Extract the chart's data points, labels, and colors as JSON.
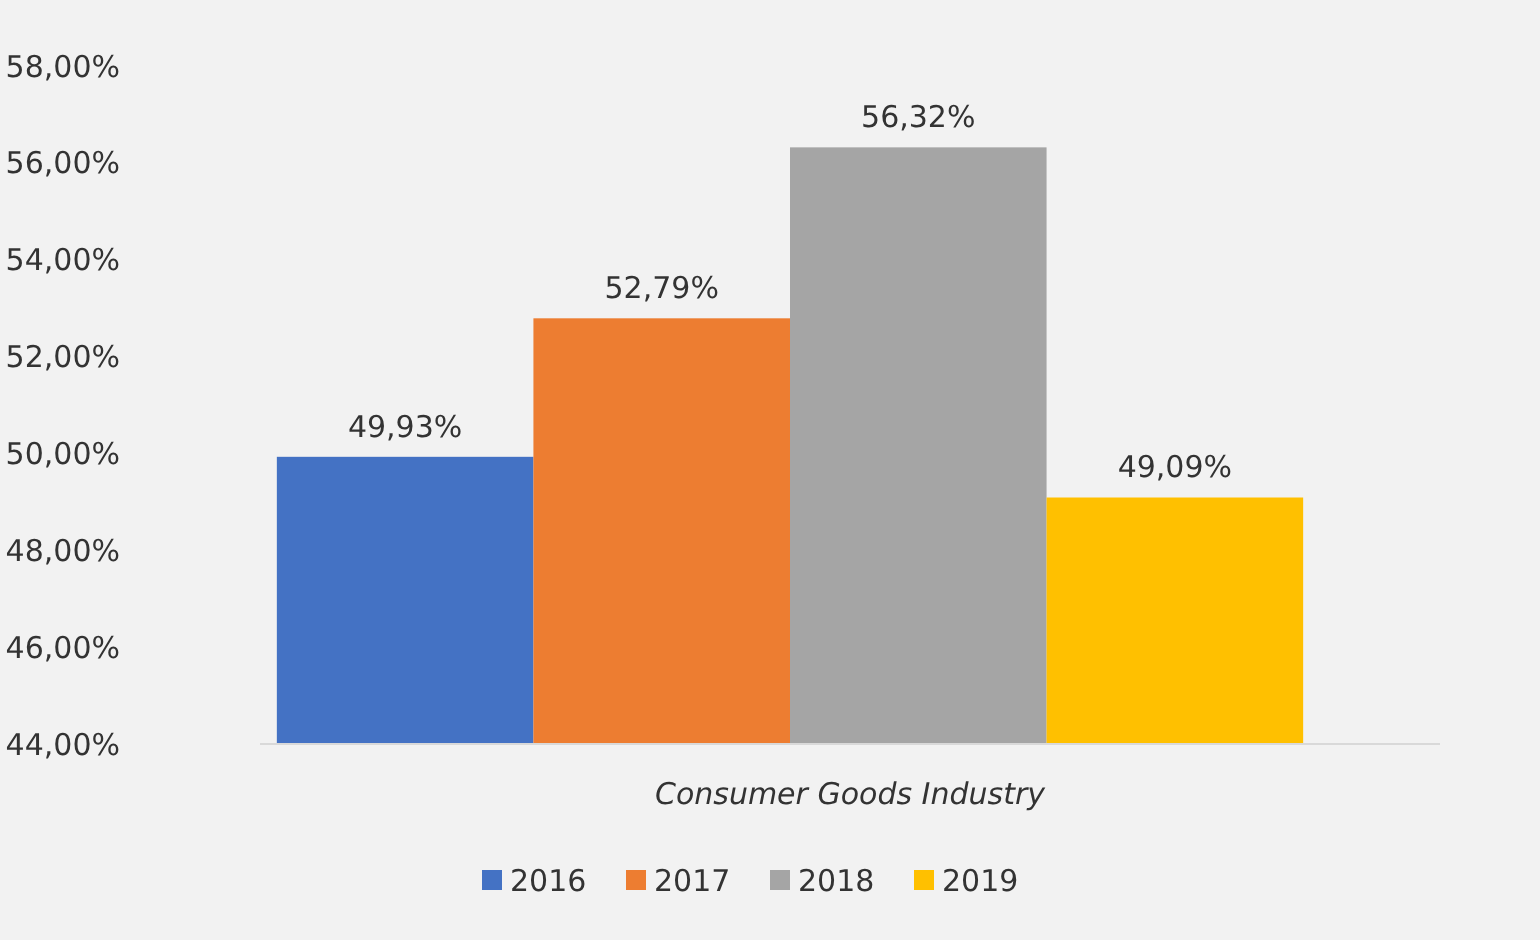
{
  "chart_data": {
    "type": "bar",
    "categories": [
      null
    ],
    "xlabel": "Consumer Goods Industry",
    "series": [
      {
        "name": "2016",
        "color": "#4472c4",
        "values": [
          49.93
        ],
        "value_labels": [
          "49,93%"
        ]
      },
      {
        "name": "2017",
        "color": "#ed7d31",
        "values": [
          52.79
        ],
        "value_labels": [
          "52,79%"
        ]
      },
      {
        "name": "2018",
        "color": "#a5a5a5",
        "values": [
          56.32
        ],
        "value_labels": [
          "56,32%"
        ]
      },
      {
        "name": "2019",
        "color": "#ffc000",
        "values": [
          49.09
        ],
        "value_labels": [
          "49,09%"
        ]
      }
    ],
    "ylim": [
      44,
      58
    ],
    "yticks": [
      {
        "value": 44,
        "label": "44,00%"
      },
      {
        "value": 46,
        "label": "46,00%"
      },
      {
        "value": 48,
        "label": "48,00%"
      },
      {
        "value": 50,
        "label": "50,00%"
      },
      {
        "value": 52,
        "label": "52,00%"
      },
      {
        "value": 54,
        "label": "54,00%"
      },
      {
        "value": 56,
        "label": "56,00%"
      },
      {
        "value": 58,
        "label": "58,00%"
      }
    ],
    "grid": false,
    "legend": "bottom"
  }
}
